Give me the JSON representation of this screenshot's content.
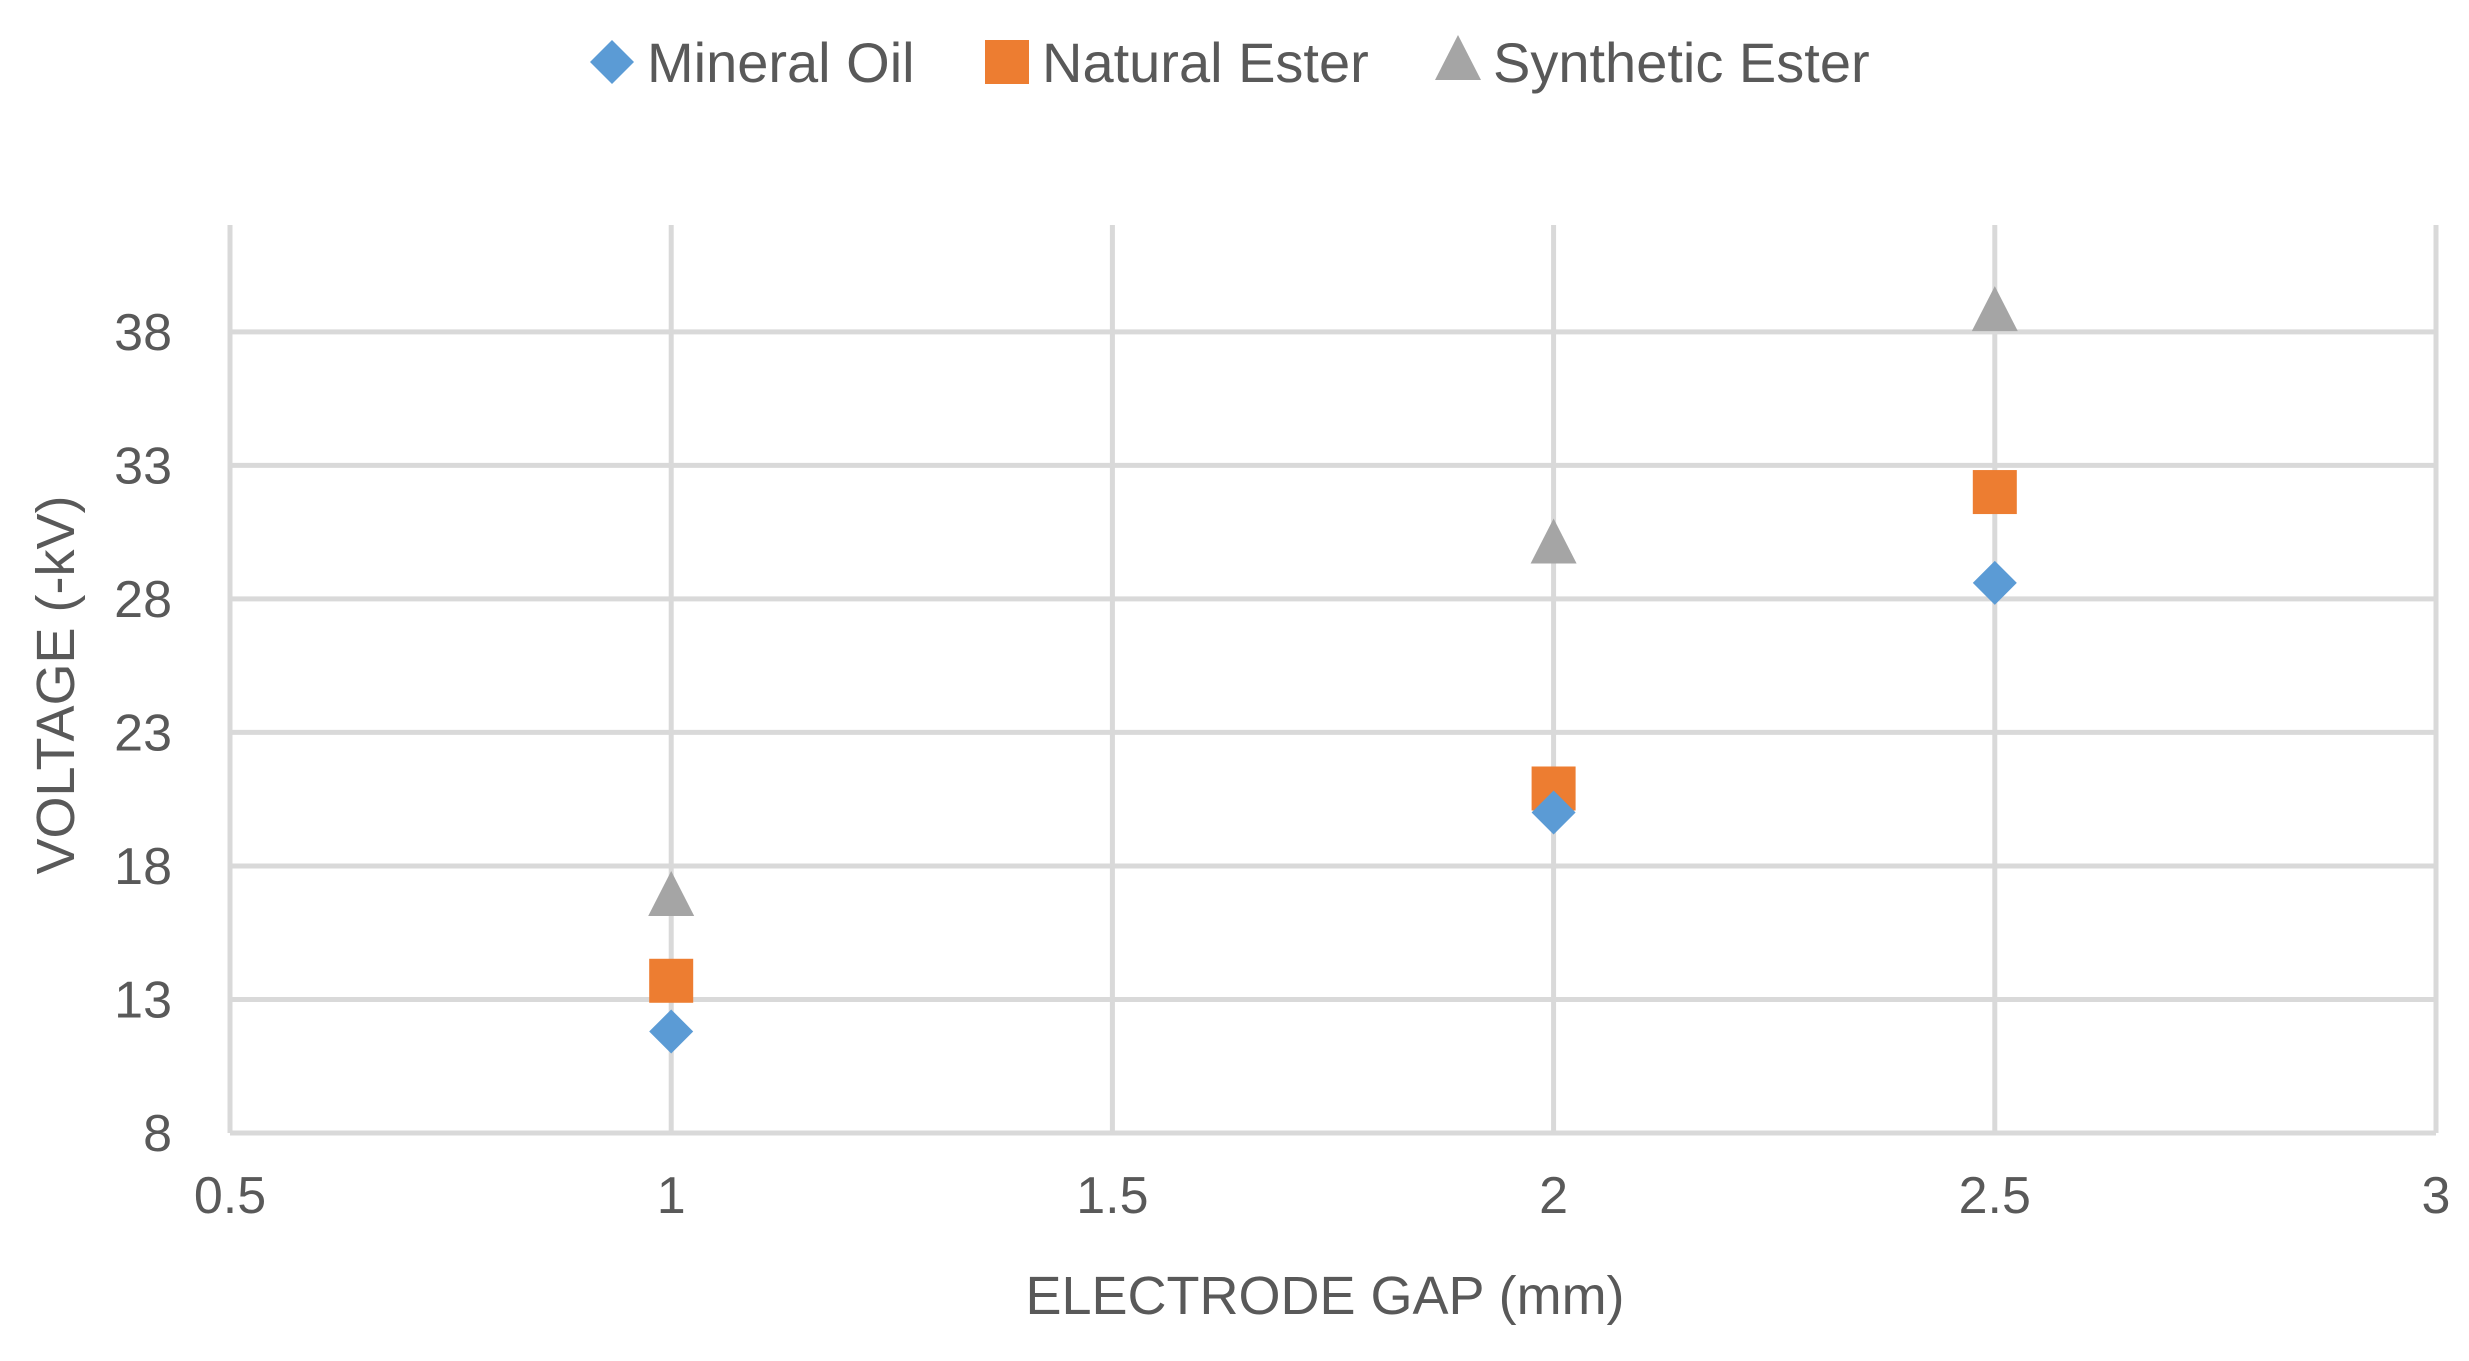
{
  "chart_data": {
    "type": "scatter",
    "title": "",
    "xlabel": "ELECTRODE GAP (mm)",
    "ylabel": "VOLTAGE (-kV)",
    "xlim": [
      0.5,
      3
    ],
    "ylim": [
      8,
      42
    ],
    "xticks": [
      0.5,
      1,
      1.5,
      2,
      2.5,
      3
    ],
    "xtick_labels": [
      "0.5",
      "1",
      "1.5",
      "2",
      "2.5",
      "3"
    ],
    "yticks": [
      8,
      13,
      18,
      23,
      28,
      33,
      38
    ],
    "ytick_labels": [
      "8",
      "13",
      "18",
      "23",
      "28",
      "33",
      "38"
    ],
    "grid": true,
    "legend_position": "top-center",
    "series": [
      {
        "name": "Mineral Oil",
        "marker": "diamond",
        "color": "#5B9BD5",
        "x": [
          1,
          2,
          2.5
        ],
        "y": [
          11.8,
          20.0,
          28.6
        ]
      },
      {
        "name": "Natural Ester",
        "marker": "square",
        "color": "#ED7D31",
        "x": [
          1,
          2,
          2.5
        ],
        "y": [
          13.7,
          20.9,
          32.0
        ]
      },
      {
        "name": "Synthetic Ester",
        "marker": "triangle",
        "color": "#A5A5A5",
        "x": [
          1,
          2,
          2.5
        ],
        "y": [
          16.8,
          30.0,
          38.7
        ]
      }
    ]
  }
}
